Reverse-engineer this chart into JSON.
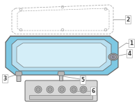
{
  "bg_color": "#ffffff",
  "pan_fill": "#7ec8e3",
  "pan_inner_fill": "#b8dff0",
  "pan_rim_fill": "#5aaac8",
  "line_color": "#aaaaaa",
  "dark_line": "#666666",
  "label_color": "#444444",
  "gasket_color": "#cccccc",
  "module_fill": "#d8d8d8",
  "bolt_fill": "#c8c8c8"
}
